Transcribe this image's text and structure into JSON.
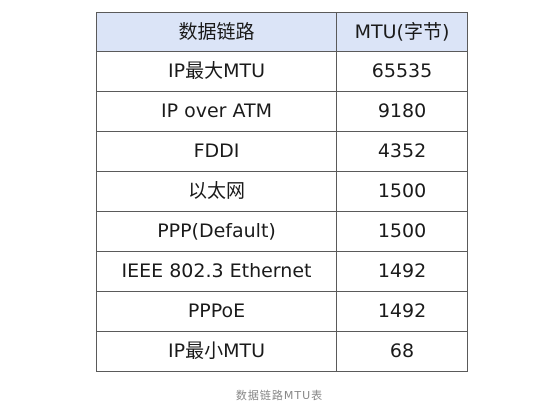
{
  "table": {
    "headers": [
      "数据链路",
      "MTU(字节)"
    ],
    "rows": [
      [
        "IP最大MTU",
        "65535"
      ],
      [
        "IP over ATM",
        "9180"
      ],
      [
        "FDDI",
        "4352"
      ],
      [
        "以太网",
        "1500"
      ],
      [
        "PPP(Default)",
        "1500"
      ],
      [
        "IEEE 802.3 Ethernet",
        "1492"
      ],
      [
        "PPPoE",
        "1492"
      ],
      [
        "IP最小MTU",
        "68"
      ]
    ]
  },
  "caption": "数据链路MTU表",
  "colors": {
    "header_bg": "#dbe4f7",
    "border": "#5a5a5a",
    "caption_text": "#888888"
  }
}
